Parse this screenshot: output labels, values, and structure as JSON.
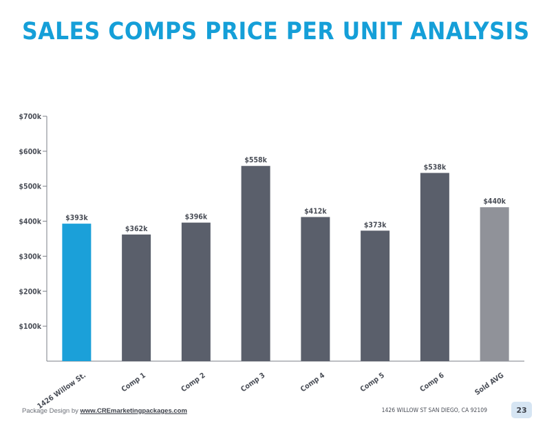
{
  "title": "SALES COMPS PRICE PER UNIT ANALYSIS",
  "colors": {
    "title": "#159fd8",
    "subject_bar": "#1ba0d9",
    "comp_bar": "#5a5f6b",
    "avg_bar": "#909299",
    "axis": "#7a7e86",
    "text": "#4a4e57"
  },
  "chart_data": {
    "type": "bar",
    "title": "",
    "xlabel": "",
    "ylabel": "",
    "ylim": [
      0,
      700
    ],
    "yticks": [
      100,
      200,
      300,
      400,
      500,
      600,
      700
    ],
    "ytick_labels": [
      "$100k",
      "$200k",
      "$300k",
      "$400k",
      "$500k",
      "$600k",
      "$700k"
    ],
    "categories": [
      "1426 Willow St.",
      "Comp 1",
      "Comp 2",
      "Comp 3",
      "Comp 4",
      "Comp 5",
      "Comp 6",
      "Sold AVG"
    ],
    "values": [
      393,
      362,
      396,
      558,
      412,
      373,
      538,
      440
    ],
    "data_labels": [
      "$393k",
      "$362k",
      "$396k",
      "$558k",
      "$412k",
      "$373k",
      "$538k",
      "$440k"
    ],
    "bar_color_keys": [
      "subject_bar",
      "comp_bar",
      "comp_bar",
      "comp_bar",
      "comp_bar",
      "comp_bar",
      "comp_bar",
      "avg_bar"
    ],
    "grid": false,
    "legend": "none"
  },
  "footer": {
    "credit_prefix": "Package Design by ",
    "credit_link": "www.CREmarketingpackages.com",
    "address": "1426 WILLOW ST SAN DIEGO, CA 92109",
    "page_number": "23"
  }
}
